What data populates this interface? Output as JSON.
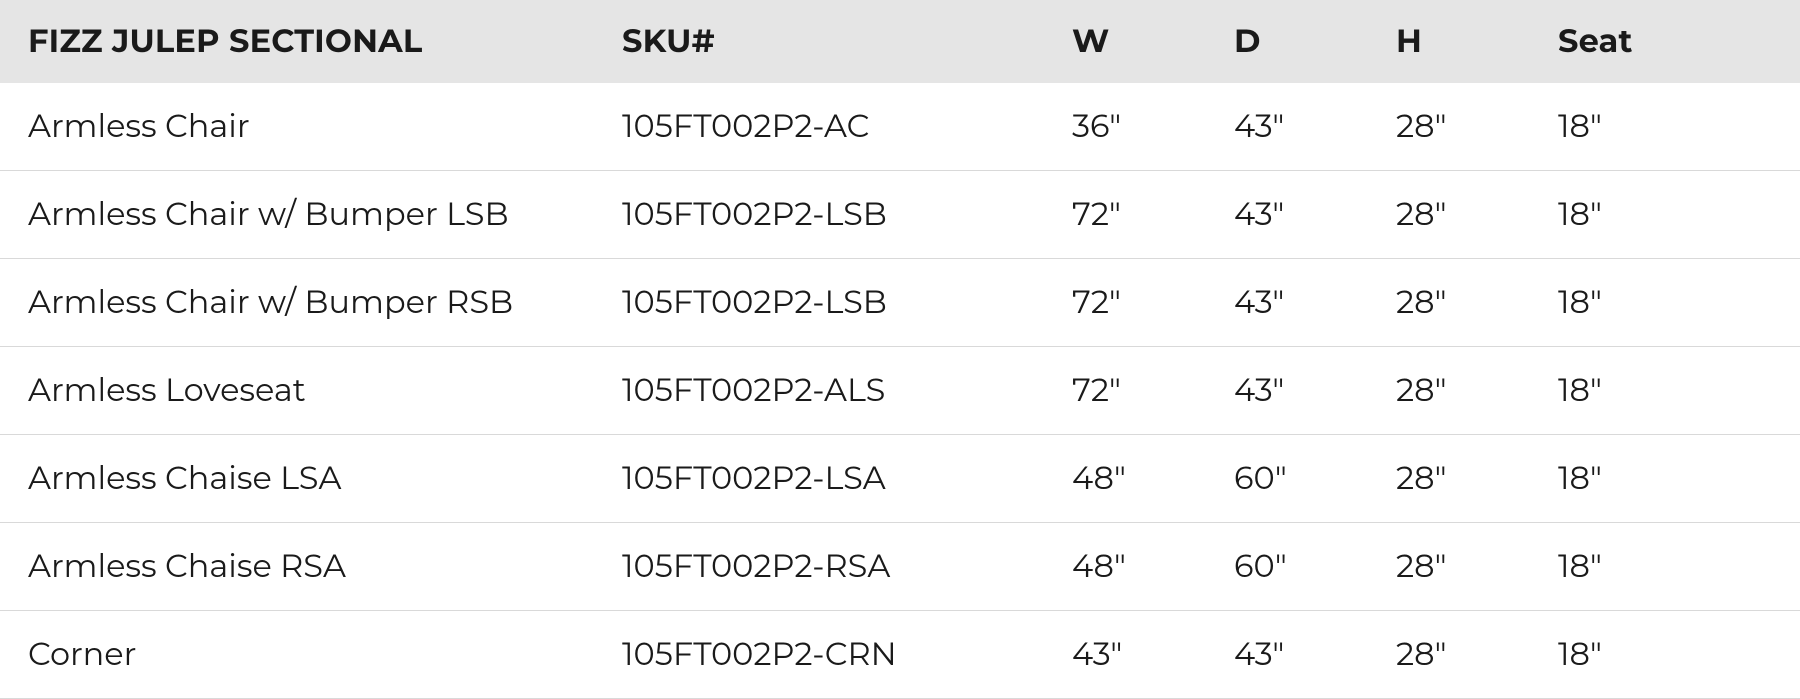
{
  "table": {
    "type": "table",
    "header_bg": "#e5e5e5",
    "row_border_color": "#d9d9d9",
    "text_color": "#1a1a1a",
    "header_fontsize": 32,
    "cell_fontsize": 32,
    "header_fontweight": 700,
    "cell_fontweight": 400,
    "columns": [
      {
        "key": "name",
        "label": "FIZZ JULEP SECTIONAL",
        "width_pct": 33,
        "align": "left"
      },
      {
        "key": "sku",
        "label": "SKU#",
        "width_pct": 25,
        "align": "left"
      },
      {
        "key": "w",
        "label": "W",
        "width_pct": 9,
        "align": "left"
      },
      {
        "key": "d",
        "label": "D",
        "width_pct": 9,
        "align": "left"
      },
      {
        "key": "h",
        "label": "H",
        "width_pct": 9,
        "align": "left"
      },
      {
        "key": "seat",
        "label": "Seat",
        "width_pct": 15,
        "align": "left"
      }
    ],
    "rows": [
      {
        "name": "Armless Chair",
        "sku": "105FT002P2-AC",
        "w": "36\"",
        "d": "43\"",
        "h": "28\"",
        "seat": "18\""
      },
      {
        "name": "Armless Chair w/ Bumper LSB",
        "sku": "105FT002P2-LSB",
        "w": "72\"",
        "d": "43\"",
        "h": "28\"",
        "seat": "18\""
      },
      {
        "name": "Armless Chair w/ Bumper RSB",
        "sku": "105FT002P2-LSB",
        "w": "72\"",
        "d": "43\"",
        "h": "28\"",
        "seat": "18\""
      },
      {
        "name": "Armless Loveseat",
        "sku": "105FT002P2-ALS",
        "w": "72\"",
        "d": "43\"",
        "h": "28\"",
        "seat": "18\""
      },
      {
        "name": "Armless Chaise LSA",
        "sku": "105FT002P2-LSA",
        "w": "48\"",
        "d": "60\"",
        "h": "28\"",
        "seat": "18\""
      },
      {
        "name": "Armless Chaise RSA",
        "sku": "105FT002P2-RSA",
        "w": "48\"",
        "d": "60\"",
        "h": "28\"",
        "seat": "18\""
      },
      {
        "name": "Corner",
        "sku": "105FT002P2-CRN",
        "w": "43\"",
        "d": "43\"",
        "h": "28\"",
        "seat": "18\""
      }
    ]
  }
}
